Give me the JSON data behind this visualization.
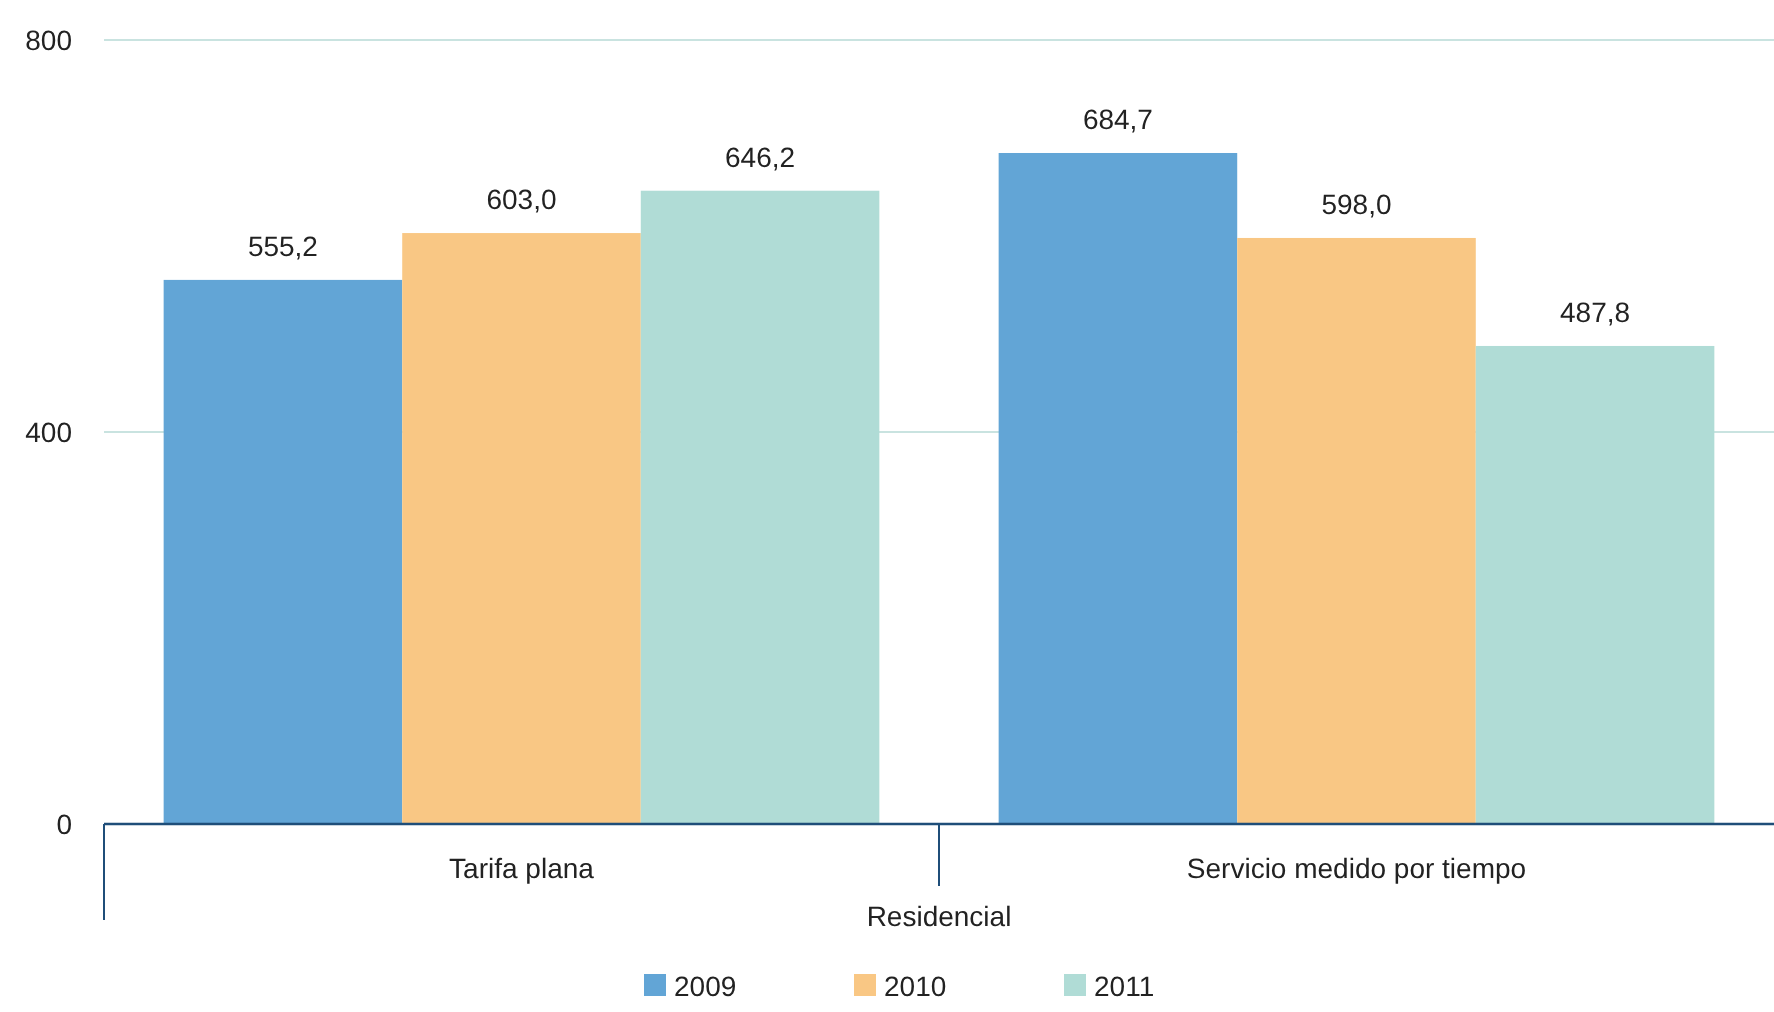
{
  "chart_data": {
    "type": "bar",
    "xlabel": "Residencial",
    "categories": [
      "Tarifa plana",
      "Servicio medido por tiempo"
    ],
    "series": [
      {
        "name": "2009",
        "color": "#62a5d6",
        "values": [
          555.2,
          684.7
        ],
        "value_labels": [
          "555,2",
          "684,7"
        ]
      },
      {
        "name": "2010",
        "color": "#f9c784",
        "values": [
          603.0,
          598.0
        ],
        "value_labels": [
          "603,0",
          "598,0"
        ]
      },
      {
        "name": "2011",
        "color": "#b0dcd6",
        "values": [
          646.2,
          487.8
        ],
        "value_labels": [
          "646,2",
          "487,8"
        ]
      }
    ],
    "ylim": [
      0,
      800
    ],
    "yticks": [
      0,
      400,
      800
    ],
    "grid": "y",
    "legend": "bottom"
  }
}
